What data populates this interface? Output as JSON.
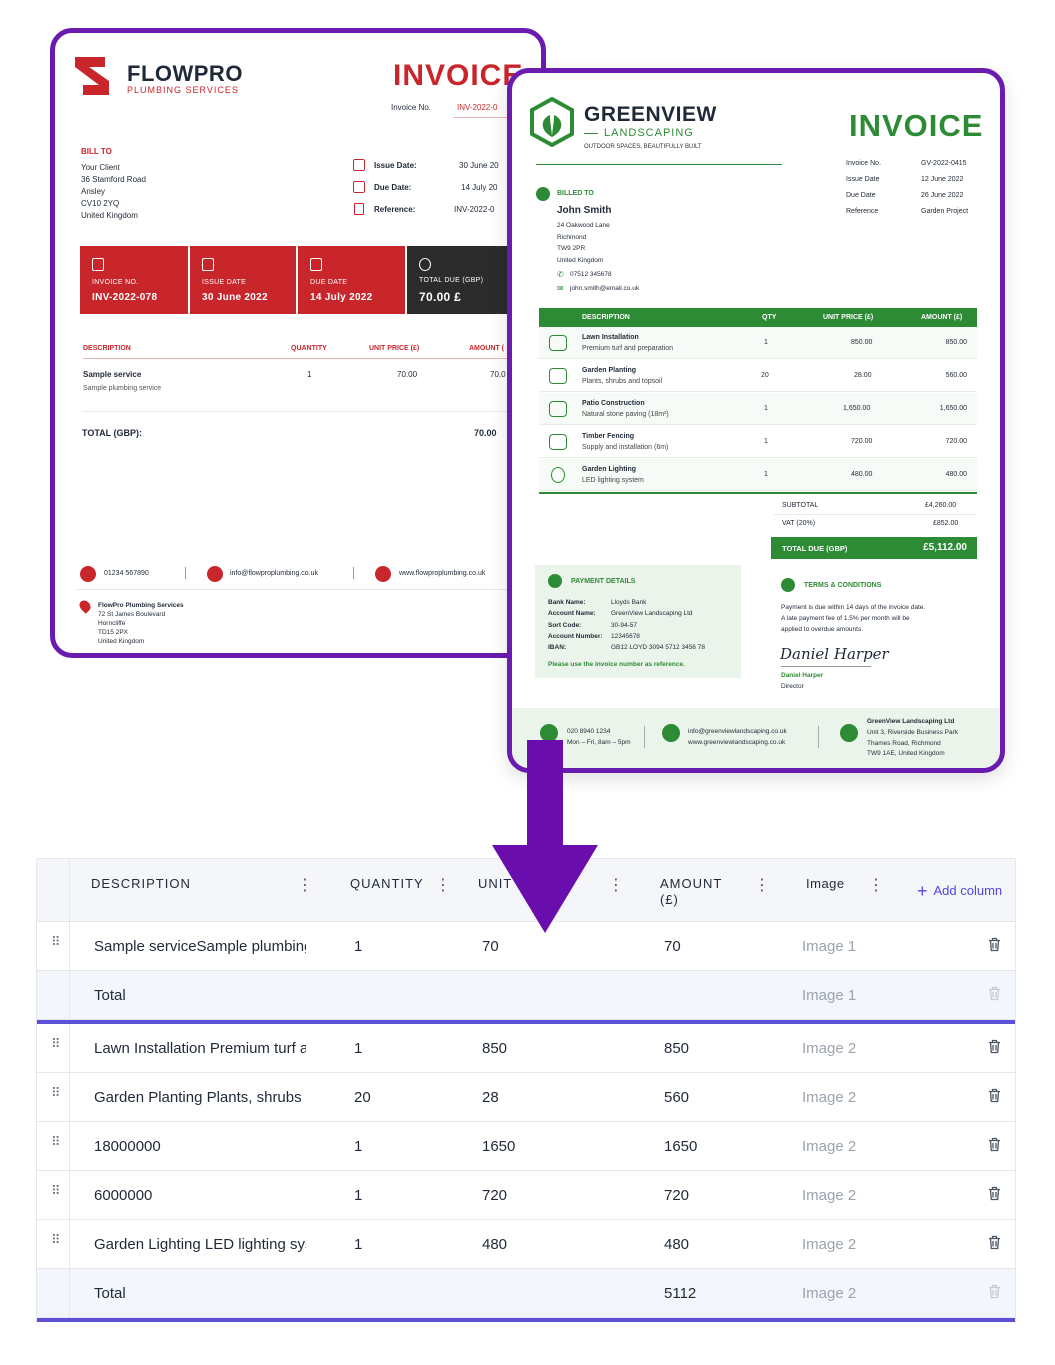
{
  "flowpro": {
    "brand": "FLOWPRO",
    "brand_sub": "PLUMBING SERVICES",
    "title": "INVOICE",
    "invoice_no_label": "Invoice No.",
    "invoice_no": "INV-2022-0",
    "bill_to_label": "BILL TO",
    "bill_to_lines": [
      "Your Client",
      "36 Stamford Road",
      "Ansley",
      "CV10 2YQ",
      "United Kingdom"
    ],
    "issue_date_label": "Issue Date:",
    "issue_date": "30 June 20",
    "due_date_label": "Due Date:",
    "due_date": "14 July 20",
    "reference_label": "Reference:",
    "reference": "INV-2022-0",
    "panels": [
      {
        "label": "INVOICE NO.",
        "value": "INV-2022-078"
      },
      {
        "label": "ISSUE DATE",
        "value": "30 June 2022"
      },
      {
        "label": "DUE DATE",
        "value": "14 July 2022"
      },
      {
        "label": "TOTAL DUE (GBP)",
        "value": "70.00 £"
      }
    ],
    "table_headers": {
      "description": "DESCRIPTION",
      "quantity": "QUANTITY",
      "unit_price": "UNIT PRICE (£)",
      "amount": "AMOUNT ("
    },
    "item": {
      "name": "Sample service",
      "desc": "Sample plumbing service",
      "qty": "1",
      "unit": "70.00",
      "amount": "70.0"
    },
    "total_label": "TOTAL (GBP):",
    "total_value": "70.00",
    "phone": "01234 567890",
    "email": "info@flowproplumbing.co.uk",
    "web": "www.flowproplumbing.co.uk",
    "address_lines": [
      "FlowPro Plumbing Services",
      "72 St James Boulevard",
      "Hornсliffe",
      "TD15 2PX",
      "United Kingdom"
    ]
  },
  "greenview": {
    "brand": "GREENVIEW",
    "brand_sub": "LANDSCAPING",
    "tagline": "OUTDOOR SPACES, BEAUTIFULLY BUILT",
    "title": "INVOICE",
    "meta": [
      {
        "label": "Invoice No.",
        "value": "GV-2022-0415"
      },
      {
        "label": "Issue Date",
        "value": "12 June 2022"
      },
      {
        "label": "Due Date",
        "value": "26 June 2022"
      },
      {
        "label": "Reference",
        "value": "Garden Project"
      }
    ],
    "billed_to_label": "BILLED TO",
    "client_name": "John Smith",
    "client_lines": [
      "24 Oakwood Lane",
      "Richmond",
      "TW9 2PR",
      "United Kingdom"
    ],
    "client_phone": "07512 345678",
    "client_email": "john.smith@email.co.uk",
    "table_headers": {
      "description": "DESCRIPTION",
      "qty": "QTY",
      "unit_price": "UNIT PRICE (£)",
      "amount": "AMOUNT (£)"
    },
    "items": [
      {
        "name": "Lawn Installation",
        "desc": "Premium turf and preparation",
        "qty": "1",
        "unit": "850.00",
        "amount": "850.00"
      },
      {
        "name": "Garden Planting",
        "desc": "Plants, shrubs and topsoil",
        "qty": "20",
        "unit": "28.00",
        "amount": "560.00"
      },
      {
        "name": "Patio Construction",
        "desc": "Natural stone paving (18m²)",
        "qty": "1",
        "unit": "1,650.00",
        "amount": "1,650.00"
      },
      {
        "name": "Timber Fencing",
        "desc": "Supply and installation (6m)",
        "qty": "1",
        "unit": "720.00",
        "amount": "720.00"
      },
      {
        "name": "Garden Lighting",
        "desc": "LED lighting system",
        "qty": "1",
        "unit": "480.00",
        "amount": "480.00"
      }
    ],
    "subtotal_label": "SUBTOTAL",
    "subtotal": "£4,260.00",
    "vat_label": "VAT (20%)",
    "vat": "£852.00",
    "total_label": "TOTAL DUE (GBP)",
    "total": "£5,112.00",
    "payment_title": "PAYMENT DETAILS",
    "payment": [
      {
        "label": "Bank Name:",
        "value": "Lloyds Bank"
      },
      {
        "label": "Account Name:",
        "value": "GreenView Landscaping Ltd"
      },
      {
        "label": "Sort Code:",
        "value": "30-94-57"
      },
      {
        "label": "Account Number:",
        "value": "12345678"
      },
      {
        "label": "IBAN:",
        "value": "GB12 LOYD 3094 5712 3456 78"
      }
    ],
    "payment_note": "Please use the invoice number as reference.",
    "terms_title": "TERMS & CONDITIONS",
    "terms_lines": [
      "Payment is due within 14 days of the invoice date.",
      "A late payment fee of 1.5% per month will be",
      "applied to overdue amounts."
    ],
    "signature": "Daniel Harper",
    "signer_name": "Daniel Harper",
    "signer_role": "Director",
    "footer_phone": "020 8940 1234",
    "footer_hours": "Mon – Fri, 8am – 5pm",
    "footer_email": "info@greenviewlandscaping.co.uk",
    "footer_web": "www.greenviewlandscaping.co.uk",
    "footer_address": [
      "GreenView Landscaping Ltd",
      "Unit 3, Riverside Business Park",
      "Thames Road, Richmond",
      "TW9 1AE, United Kingdom"
    ]
  },
  "grid": {
    "headers": {
      "description": "DESCRIPTION",
      "quantity": "QUANTITY",
      "unit": "UNIT",
      "amount_1": "AMOUNT",
      "amount_2": "(£)",
      "image": "Image",
      "add_column": "Add column"
    },
    "rows": [
      {
        "description": "Sample serviceSample plumbing",
        "quantity": "1",
        "unit": "70",
        "amount": "70",
        "image": "Image 1",
        "total": false
      },
      {
        "description": "Total",
        "quantity": "",
        "unit": "",
        "amount": "",
        "image": "Image 1",
        "total": true
      },
      {
        "description": "Lawn Installation Premium turf a",
        "quantity": "1",
        "unit": "850",
        "amount": "850",
        "image": "Image 2",
        "total": false
      },
      {
        "description": "Garden Planting Plants, shrubs a",
        "quantity": "20",
        "unit": "28",
        "amount": "560",
        "image": "Image 2",
        "total": false
      },
      {
        "description": "18000000",
        "quantity": "1",
        "unit": "1650",
        "amount": "1650",
        "image": "Image 2",
        "total": false
      },
      {
        "description": "6000000",
        "quantity": "1",
        "unit": "720",
        "amount": "720",
        "image": "Image 2",
        "total": false
      },
      {
        "description": "Garden Lighting LED lighting sys",
        "quantity": "1",
        "unit": "480",
        "amount": "480",
        "image": "Image 2",
        "total": false
      },
      {
        "description": "Total",
        "quantity": "",
        "unit": "",
        "amount": "5112",
        "image": "Image 2",
        "total": true
      }
    ]
  }
}
